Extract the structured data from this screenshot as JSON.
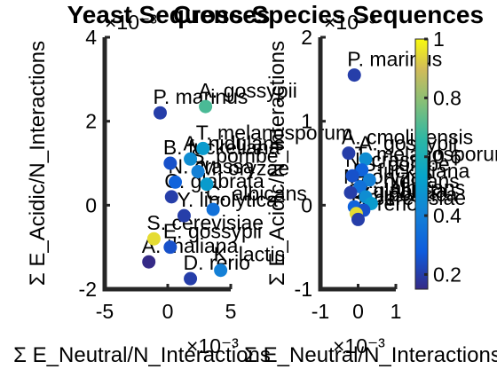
{
  "chart_data": [
    {
      "type": "scatter",
      "title": "Yeast Sequences",
      "xlabel": "Σ E_Neutral/N_Interactions",
      "ylabel": "Σ E_Acidic/N_Interactions",
      "x_exponent": "×10⁻³",
      "y_exponent": "×10⁻³",
      "xlim": [
        -5,
        5
      ],
      "ylim": [
        -2,
        4
      ],
      "x_ticks": [
        "-5",
        "0",
        "5"
      ],
      "y_ticks": [
        "-2",
        "0",
        "2",
        "4"
      ],
      "points": [
        {
          "x": -0.6,
          "y": 2.2,
          "c": 0.2,
          "label": "P. marinus"
        },
        {
          "x": 3.0,
          "y": 2.35,
          "c": 0.7,
          "label": "A. gossypii"
        },
        {
          "x": 2.8,
          "y": 1.35,
          "c": 0.5,
          "label": "T. melanosporum"
        },
        {
          "x": 0.2,
          "y": 1.0,
          "c": 0.25,
          "label": "B. fuckeliana"
        },
        {
          "x": 1.8,
          "y": 1.1,
          "c": 0.45,
          "label": "A. nidulans"
        },
        {
          "x": 2.4,
          "y": 0.8,
          "c": 0.4,
          "label": "S. pombe"
        },
        {
          "x": 0.6,
          "y": 0.55,
          "c": 0.3,
          "label": "N. crassa"
        },
        {
          "x": 3.1,
          "y": 0.5,
          "c": 0.5,
          "label": "M. oryzae"
        },
        {
          "x": 0.3,
          "y": 0.2,
          "c": 0.2,
          "label": "C. glabrata"
        },
        {
          "x": 3.6,
          "y": -0.1,
          "c": 0.35,
          "label": "C. albicans"
        },
        {
          "x": 1.3,
          "y": -0.25,
          "c": 0.2,
          "label": "Y. lipolytica"
        },
        {
          "x": -1.1,
          "y": -0.8,
          "c": 0.95,
          "label": "S. cerevisiae"
        },
        {
          "x": 0.2,
          "y": -1.0,
          "c": 0.25,
          "label": "E. gossypii"
        },
        {
          "x": -1.5,
          "y": -1.35,
          "c": 0.15,
          "label": "A. thaliana"
        },
        {
          "x": 1.8,
          "y": -1.75,
          "c": 0.2,
          "label": "D. rerio"
        },
        {
          "x": 4.2,
          "y": -1.55,
          "c": 0.4,
          "label": "K. lactis"
        }
      ]
    },
    {
      "type": "scatter",
      "title": "Cross-Species Sequences",
      "xlabel": "Σ E_Neutral/N_Interactions",
      "ylabel": "Σ E_Acidic/N_Interactions",
      "x_exponent": "×10⁻³",
      "y_exponent": "×10⁻³",
      "xlim": [
        -1,
        1
      ],
      "ylim": [
        -1,
        2
      ],
      "x_ticks": [
        "-1",
        "0",
        "1"
      ],
      "y_ticks": [
        "-1",
        "0",
        "1",
        "2"
      ],
      "colorbar": {
        "range": [
          0.15,
          1.0
        ],
        "ticks": [
          "0.2",
          "0.4",
          "0.6",
          "0.8",
          "1"
        ],
        "colormap": "parula"
      },
      "points": [
        {
          "x": -0.1,
          "y": 1.55,
          "c": 0.2,
          "label": "P. marinus"
        },
        {
          "x": -0.25,
          "y": 0.62,
          "c": 0.2,
          "label": "A. cmolinensis"
        },
        {
          "x": 0.2,
          "y": 0.55,
          "c": 0.45,
          "label": "A. gossypii"
        },
        {
          "x": 0.1,
          "y": 0.42,
          "c": 0.3,
          "label": "T. melanosporum"
        },
        {
          "x": -0.15,
          "y": 0.35,
          "c": 0.25,
          "label": "N. crassa"
        },
        {
          "x": 0.3,
          "y": 0.3,
          "c": 0.4,
          "label": "S. pombe"
        },
        {
          "x": 0.05,
          "y": 0.22,
          "c": 0.35,
          "label": "B. fuckeliana"
        },
        {
          "x": -0.2,
          "y": 0.15,
          "c": 0.2,
          "label": "M. oryzae"
        },
        {
          "x": 0.2,
          "y": 0.1,
          "c": 0.45,
          "label": "A. nidulans"
        },
        {
          "x": 0.35,
          "y": 0.02,
          "c": 0.5,
          "label": "C. albicans"
        },
        {
          "x": -0.1,
          "y": -0.02,
          "c": 0.3,
          "label": "C. glabrata"
        },
        {
          "x": 0.15,
          "y": -0.06,
          "c": 0.25,
          "label": "Y. lipolytica"
        },
        {
          "x": -0.05,
          "y": -0.1,
          "c": 0.95,
          "label": "S. cerevisiae"
        },
        {
          "x": 0.0,
          "y": -0.17,
          "c": 0.2,
          "label": "D. rerio"
        }
      ]
    }
  ]
}
